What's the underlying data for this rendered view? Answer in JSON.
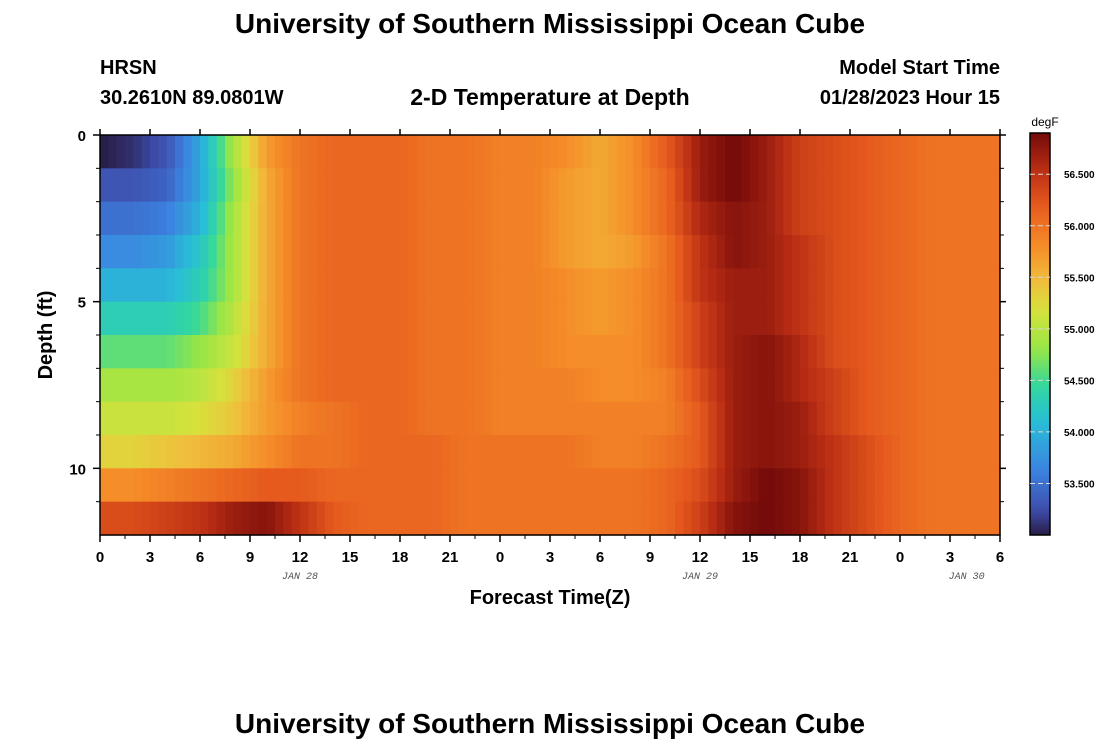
{
  "header": {
    "title": "University of Southern Mississippi Ocean Cube",
    "station": "HRSN",
    "coords": "30.2610N  89.0801W",
    "plot_title": "2-D Temperature at Depth",
    "model_label": "Model Start Time",
    "model_time": "01/28/2023 Hour 15"
  },
  "footer": {
    "title": "University of Southern Mississippi Ocean Cube"
  },
  "chart_data": {
    "type": "heatmap",
    "title": "2-D Temperature at Depth",
    "xlabel": "Forecast Time(Z)",
    "ylabel": "Depth (ft)",
    "x_tick_labels": [
      "0",
      "3",
      "6",
      "9",
      "12",
      "15",
      "18",
      "21",
      "0",
      "3",
      "6",
      "9",
      "12",
      "15",
      "18",
      "21",
      "0",
      "3",
      "6"
    ],
    "x_range_hours": [
      0,
      54
    ],
    "date_labels": [
      {
        "label": "JAN 28",
        "hour": 12
      },
      {
        "label": "JAN 29",
        "hour": 36
      },
      {
        "label": "JAN 30",
        "hour": 52
      }
    ],
    "y_tick_labels": [
      "0",
      "5",
      "10"
    ],
    "y_ticks": [
      0,
      5,
      10
    ],
    "y_range": [
      0,
      12
    ],
    "colorbar": {
      "unit": "degF",
      "min": 53.0,
      "max": 56.9,
      "tick_values": [
        56.5,
        56.0,
        55.5,
        55.0,
        54.5,
        54.0,
        53.5
      ],
      "tick_labels": [
        "56.500",
        "56.000",
        "55.500",
        "55.000",
        "54.500",
        "54.000",
        "53.500"
      ]
    },
    "depths_ft": [
      0.5,
      1.5,
      2.5,
      3.5,
      4.5,
      5.5,
      6.5,
      7.5,
      8.5,
      9.5,
      10.5,
      11.5
    ],
    "times_hr": [
      0,
      2,
      4,
      6,
      8,
      10,
      12,
      14,
      16,
      18,
      20,
      22,
      24,
      26,
      28,
      30,
      32,
      34,
      36,
      38,
      40,
      42,
      44,
      46,
      48,
      50,
      52,
      54
    ],
    "values": [
      [
        53.0,
        53.1,
        53.3,
        53.9,
        54.9,
        55.7,
        56.0,
        56.1,
        56.1,
        56.1,
        56.0,
        56.0,
        55.9,
        55.9,
        55.8,
        55.6,
        55.8,
        56.2,
        56.7,
        56.9,
        56.7,
        56.4,
        56.3,
        56.2,
        56.1,
        56.0,
        56.0,
        56.0
      ],
      [
        53.3,
        53.3,
        53.4,
        53.9,
        54.8,
        55.6,
        56.0,
        56.1,
        56.1,
        56.1,
        56.0,
        56.0,
        55.9,
        55.9,
        55.7,
        55.6,
        55.8,
        56.1,
        56.7,
        56.9,
        56.7,
        56.4,
        56.3,
        56.2,
        56.1,
        56.0,
        56.0,
        56.0
      ],
      [
        53.5,
        53.5,
        53.6,
        54.0,
        54.9,
        55.6,
        56.0,
        56.1,
        56.1,
        56.1,
        56.0,
        56.0,
        55.9,
        55.9,
        55.7,
        55.6,
        55.8,
        56.1,
        56.6,
        56.8,
        56.7,
        56.4,
        56.3,
        56.2,
        56.1,
        56.0,
        56.0,
        56.0
      ],
      [
        53.7,
        53.7,
        53.8,
        54.2,
        54.9,
        55.6,
        56.0,
        56.1,
        56.1,
        56.1,
        56.0,
        56.0,
        55.9,
        55.9,
        55.7,
        55.6,
        55.7,
        56.0,
        56.5,
        56.8,
        56.7,
        56.5,
        56.3,
        56.2,
        56.1,
        56.0,
        56.0,
        56.0
      ],
      [
        54.0,
        54.0,
        54.0,
        54.3,
        54.9,
        55.6,
        56.0,
        56.1,
        56.1,
        56.1,
        56.0,
        56.0,
        55.9,
        55.9,
        55.8,
        55.7,
        55.8,
        56.0,
        56.5,
        56.7,
        56.7,
        56.5,
        56.3,
        56.2,
        56.1,
        56.0,
        56.0,
        56.0
      ],
      [
        54.3,
        54.3,
        54.3,
        54.5,
        55.0,
        55.6,
        56.0,
        56.1,
        56.1,
        56.1,
        56.0,
        56.0,
        55.9,
        55.9,
        55.8,
        55.7,
        55.8,
        56.0,
        56.4,
        56.7,
        56.7,
        56.5,
        56.3,
        56.2,
        56.1,
        56.0,
        56.0,
        56.0
      ],
      [
        54.6,
        54.6,
        54.6,
        54.8,
        55.1,
        55.6,
        56.0,
        56.1,
        56.1,
        56.1,
        56.0,
        56.0,
        55.9,
        55.9,
        55.8,
        55.8,
        55.8,
        56.0,
        56.4,
        56.7,
        56.8,
        56.6,
        56.3,
        56.2,
        56.1,
        56.0,
        56.0,
        56.0
      ],
      [
        54.9,
        54.9,
        54.9,
        55.0,
        55.3,
        55.7,
        56.0,
        56.1,
        56.1,
        56.1,
        56.0,
        56.0,
        55.9,
        55.9,
        55.9,
        55.8,
        55.8,
        55.9,
        56.3,
        56.7,
        56.8,
        56.6,
        56.4,
        56.2,
        56.1,
        56.0,
        56.0,
        56.0
      ],
      [
        55.1,
        55.1,
        55.1,
        55.2,
        55.4,
        55.7,
        55.9,
        56.0,
        56.1,
        56.1,
        56.0,
        56.0,
        55.9,
        55.9,
        55.9,
        55.9,
        55.9,
        55.9,
        56.2,
        56.7,
        56.8,
        56.7,
        56.4,
        56.2,
        56.1,
        56.0,
        56.0,
        56.0
      ],
      [
        55.3,
        55.3,
        55.4,
        55.5,
        55.6,
        55.8,
        56.0,
        56.0,
        56.1,
        56.1,
        56.1,
        56.0,
        56.0,
        56.0,
        56.0,
        55.9,
        55.9,
        56.0,
        56.2,
        56.7,
        56.8,
        56.7,
        56.5,
        56.3,
        56.1,
        56.0,
        56.0,
        56.0
      ],
      [
        55.8,
        55.8,
        55.9,
        56.0,
        56.1,
        56.2,
        56.2,
        56.1,
        56.1,
        56.1,
        56.1,
        56.0,
        56.0,
        56.0,
        56.0,
        56.0,
        56.0,
        56.1,
        56.3,
        56.7,
        56.9,
        56.8,
        56.5,
        56.3,
        56.1,
        56.0,
        56.0,
        56.0
      ],
      [
        56.3,
        56.3,
        56.4,
        56.5,
        56.7,
        56.8,
        56.5,
        56.2,
        56.1,
        56.1,
        56.1,
        56.0,
        56.0,
        56.0,
        56.0,
        56.0,
        56.0,
        56.1,
        56.4,
        56.8,
        56.9,
        56.8,
        56.5,
        56.3,
        56.1,
        56.0,
        56.0,
        56.0
      ]
    ]
  }
}
